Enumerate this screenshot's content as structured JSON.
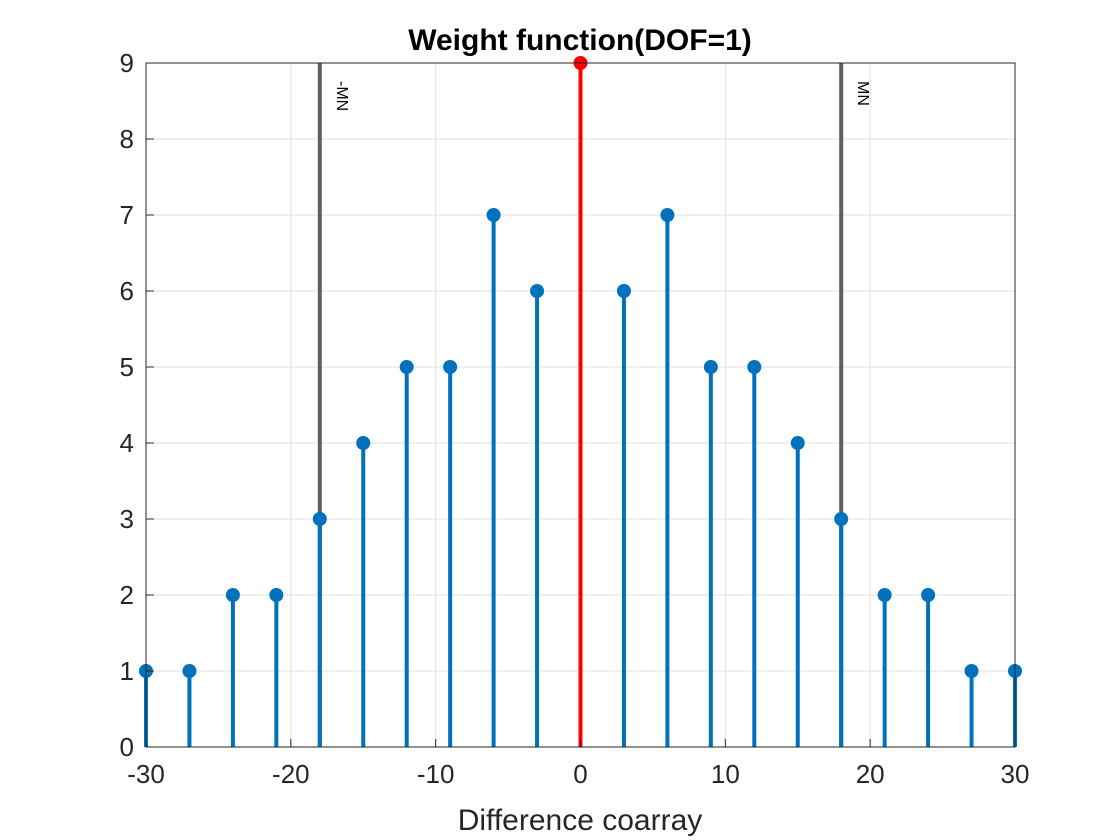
{
  "chart_data": {
    "type": "stem",
    "title": "Weight function(DOF=1)",
    "xlabel": "Difference coarray",
    "ylabel": "",
    "xlim": [
      -30,
      30
    ],
    "ylim": [
      0,
      9
    ],
    "xticks": [
      -30,
      -20,
      -10,
      0,
      10,
      20,
      30
    ],
    "yticks": [
      0,
      1,
      2,
      3,
      4,
      5,
      6,
      7,
      8,
      9
    ],
    "grid": true,
    "colors": {
      "stem": "#0072BD",
      "center": "#FF0000",
      "marker_line": "#606060",
      "axis": "#262626",
      "grid": "#E0E0E0"
    },
    "x": [
      -30,
      -27,
      -24,
      -21,
      -18,
      -15,
      -12,
      -9,
      -6,
      -3,
      0,
      3,
      6,
      9,
      12,
      15,
      18,
      21,
      24,
      27,
      30
    ],
    "values": [
      1,
      1,
      2,
      2,
      3,
      4,
      5,
      5,
      7,
      6,
      9,
      6,
      7,
      5,
      5,
      4,
      3,
      2,
      2,
      1,
      1
    ],
    "highlight_x": 0,
    "reference_lines": [
      {
        "x": -18,
        "label": "-MN"
      },
      {
        "x": 18,
        "label": "MN"
      }
    ]
  }
}
